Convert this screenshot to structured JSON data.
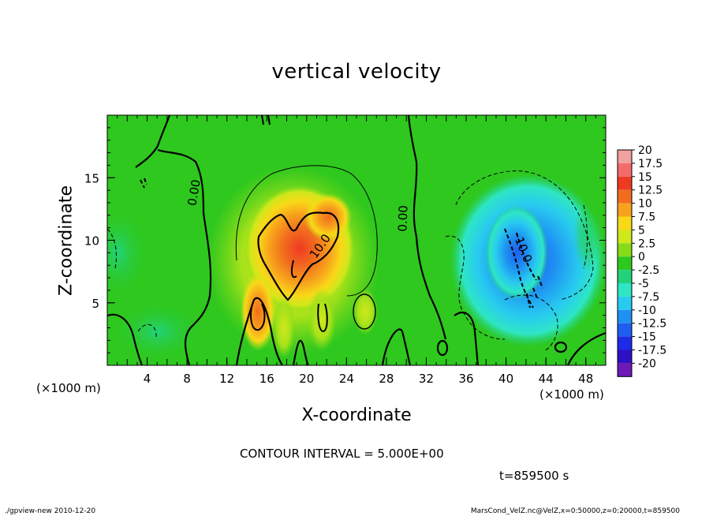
{
  "chart_data": {
    "type": "heatmap",
    "title": "vertical velocity",
    "xlabel": "X-coordinate",
    "ylabel": "Z-coordinate",
    "x_unit": "(×1000 m)",
    "y_unit": "(×1000 m)",
    "xlim": [
      0,
      50
    ],
    "ylim": [
      0,
      20
    ],
    "x_ticks": [
      "4",
      "8",
      "12",
      "16",
      "20",
      "24",
      "28",
      "32",
      "36",
      "40",
      "44",
      "48"
    ],
    "y_ticks": [
      "5",
      "10",
      "15"
    ],
    "contour_interval_text": "CONTOUR INTERVAL = 5.000E+00",
    "contour_labels": [
      "0.00",
      "10.0",
      "0.00",
      "-10.0"
    ],
    "colorbar": {
      "labels": [
        "20",
        "17.5",
        "15",
        "12.5",
        "10",
        "7.5",
        "5",
        "2.5",
        "0",
        "-2.5",
        "-5",
        "-7.5",
        "-10",
        "-12.5",
        "-15",
        "-17.5",
        "-20"
      ],
      "colors": [
        "#f2a0a0",
        "#f26c6c",
        "#ee3a22",
        "#f26c1e",
        "#f7a21c",
        "#f9d818",
        "#cfe81a",
        "#86dc18",
        "#2ec81e",
        "#22d27a",
        "#2ee6c4",
        "#28cbf0",
        "#1e92f2",
        "#1e5ef0",
        "#1e2ae8",
        "#2e10c4",
        "#6e18b6"
      ]
    },
    "features": [
      {
        "kind": "updraft",
        "x_center": 19,
        "z_center": 8.5,
        "peak": 15
      },
      {
        "kind": "updraft",
        "x_center": 15,
        "z_center": 4.5,
        "peak": 12.5
      },
      {
        "kind": "downdraft",
        "x_center": 41,
        "z_center": 8.5,
        "peak": -12.5
      }
    ]
  },
  "time_text": "t=859500 s",
  "footer": {
    "left": "./gpview-new  2010-12-20",
    "right": "MarsCond_VelZ.nc@VelZ,x=0:50000,z=0:20000,t=859500"
  }
}
